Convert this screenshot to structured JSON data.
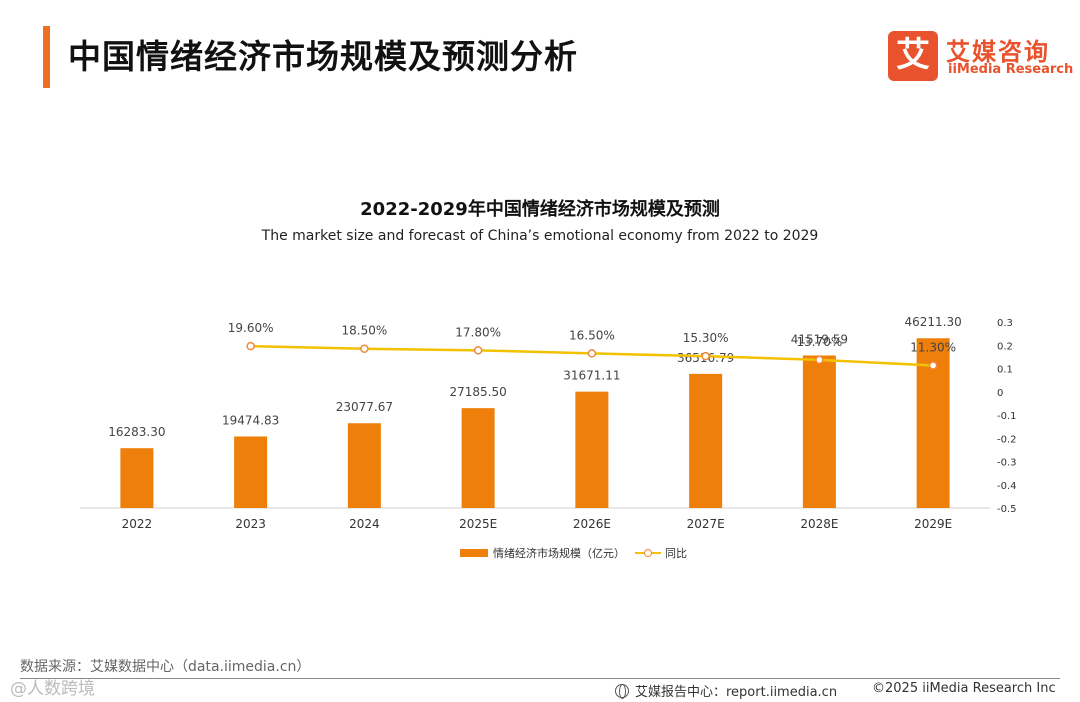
{
  "header": {
    "title": "中国情绪经济市场规模及预测分析",
    "logo_badge": "艾",
    "logo_cn": "艾媒咨询",
    "logo_en": "iiMedia Research"
  },
  "colors": {
    "accent": "#ee6f22",
    "bar": "#ef7f0b",
    "line": "#f2c200",
    "marker": "#f08a3e"
  },
  "chart_data": {
    "type": "bar+line",
    "title": "2022-2029年中国情绪经济市场规模及预测",
    "subtitle": "The market size and forecast of China’s emotional economy from 2022 to 2029",
    "categories": [
      "2022",
      "2023",
      "2024",
      "2025E",
      "2026E",
      "2027E",
      "2028E",
      "2029E"
    ],
    "series": [
      {
        "name": "情绪经济市场规模（亿元）",
        "type": "bar",
        "axis": "left",
        "values": [
          16283.3,
          19474.83,
          23077.67,
          27185.5,
          31671.11,
          36516.79,
          41519.59,
          46211.3
        ],
        "labels": [
          "16283.30",
          "19474.83",
          "23077.67",
          "27185.50",
          "31671.11",
          "36516.79",
          "41519.59",
          "46211.30"
        ]
      },
      {
        "name": "同比",
        "type": "line",
        "axis": "right",
        "values": [
          null,
          0.196,
          0.185,
          0.178,
          0.165,
          0.153,
          0.137,
          0.113
        ],
        "labels": [
          "",
          "19.60%",
          "18.50%",
          "17.80%",
          "16.50%",
          "15.30%",
          "13.70%",
          "11.30%"
        ]
      }
    ],
    "y_left_range": [
      0,
      49000
    ],
    "y_right_range": [
      -0.5,
      0.3
    ],
    "y_right_ticks": [
      "0.3",
      "0.2",
      "0.1",
      "0",
      "-0.1",
      "-0.2",
      "-0.3",
      "-0.4",
      "-0.5"
    ],
    "legend_position": "bottom-center"
  },
  "footer": {
    "source": "数据来源：艾媒数据中心（data.iimedia.cn）",
    "watermark": "@人数跨境",
    "report": "艾媒报告中心：report.iimedia.cn",
    "copyright": "©2025  iiMedia Research  Inc"
  }
}
